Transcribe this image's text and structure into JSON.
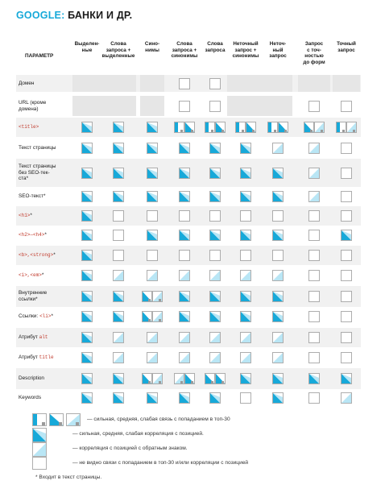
{
  "title": {
    "accent": "GOOGLE:",
    "rest": " БАНКИ И ДР."
  },
  "columns_header": "ПАРАМЕТР",
  "columns": [
    "Выделен-\nные",
    "Слова\nзапроса +\nвыделенные",
    "Сино-\nнимы",
    "Слова\nзапроса +\nсинонимы",
    "Слова\nзапроса",
    "Неточный\nзапрос +\nсинонимы",
    "Неточ-\nный\nзапрос",
    "Запрос\nс точ-\nностью\nдо форм",
    "Точный\nзапрос"
  ],
  "rows": [
    {
      "label": "Домен",
      "cells": [
        "gray",
        "gray",
        "gray",
        "empty",
        "empty",
        "gray",
        "gray",
        "gray",
        "gray"
      ]
    },
    {
      "label": "URL (кроме\nдомена)",
      "cells": [
        "gray",
        "gray",
        "gray",
        "empty",
        "empty",
        "gray",
        "gray",
        "empty",
        "empty"
      ]
    },
    {
      "label_code": "<title>",
      "cells": [
        "tri-dark",
        "tri-dark",
        "tri-dark",
        "bars-sm",
        "bars-sm",
        "bars-s2",
        "bars-s2",
        "bars-ww",
        "bars-sw"
      ]
    },
    {
      "label": "Текст страницы",
      "cells": [
        "tri-dark",
        "tri-dark",
        "tri-dark",
        "tri-dark",
        "tri-dark",
        "tri-dark",
        "tri-light",
        "tri-light",
        "empty"
      ]
    },
    {
      "label": "Текст страницы\nбез SEO-тек-\nста*",
      "cells": [
        "tri-dark",
        "tri-dark",
        "tri-dark",
        "tri-dark",
        "tri-dark",
        "tri-dark",
        "tri-dark",
        "tri-light",
        "empty"
      ]
    },
    {
      "label": "SEO-текст*",
      "cells": [
        "tri-dark",
        "tri-dark",
        "tri-dark",
        "tri-dark",
        "tri-dark",
        "tri-dark",
        "tri-dark",
        "tri-light",
        "empty"
      ]
    },
    {
      "label_code": "<h1>",
      "label_after": "*",
      "cells": [
        "tri-dark",
        "empty",
        "empty",
        "empty",
        "empty",
        "empty",
        "empty",
        "empty",
        "empty"
      ]
    },
    {
      "label_code": "<h2>—<h4>",
      "label_after": "*",
      "cells": [
        "tri-dark",
        "empty",
        "tri-dark",
        "tri-dark",
        "tri-dark",
        "tri-dark",
        "tri-dark",
        "empty",
        "tri-dark"
      ]
    },
    {
      "label_code": "<b>,<strong>",
      "label_after": "*",
      "cells": [
        "tri-dark",
        "empty",
        "empty",
        "empty",
        "empty",
        "empty",
        "empty",
        "empty",
        "empty"
      ]
    },
    {
      "label_code": "<i>,<em>",
      "label_after": "*",
      "cells": [
        "tri-dark",
        "tri-light",
        "tri-light",
        "tri-light",
        "tri-light",
        "tri-light",
        "tri-light",
        "empty",
        "empty"
      ]
    },
    {
      "label": "Внутренние\nссылки*",
      "cells": [
        "tri-dark",
        "tri-dark",
        "bars-wm",
        "tri-dark",
        "tri-dark",
        "tri-dark",
        "tri-dark",
        "empty",
        "empty"
      ]
    },
    {
      "label": "Ссылки: ",
      "label_code": "<li>",
      "label_after": "*",
      "label_prefix": true,
      "cells": [
        "tri-dark",
        "tri-dark",
        "bars-wm",
        "tri-dark",
        "tri-dark",
        "tri-dark",
        "tri-dark",
        "empty",
        "empty"
      ]
    },
    {
      "label": "Атрибут ",
      "label_code": "alt",
      "label_prefix": true,
      "cells": [
        "tri-dark",
        "tri-light",
        "tri-light",
        "tri-light",
        "tri-light",
        "tri-light",
        "tri-light",
        "empty",
        "empty"
      ]
    },
    {
      "label": "Атрибут ",
      "label_code": "title",
      "label_prefix": true,
      "cells": [
        "tri-dark",
        "tri-light",
        "tri-light",
        "tri-light",
        "tri-light",
        "tri-light",
        "tri-light",
        "empty",
        "empty"
      ]
    },
    {
      "label": "Description",
      "cells": [
        "tri-dark",
        "tri-dark",
        "bars-wm",
        "bars-ww2",
        "bars-mw",
        "tri-dark",
        "tri-dark",
        "tri-dark",
        "tri-dark"
      ]
    },
    {
      "label": "Keywords",
      "cells": [
        "tri-dark",
        "tri-dark",
        "tri-dark",
        "tri-dark",
        "tri-dark",
        "empty",
        "tri-dark",
        "empty",
        "tri-light"
      ]
    }
  ],
  "legend": [
    {
      "icon": "bars-strong-medium-weak",
      "text": "— сильная, средняя, слабая связь с попаданием в топ-30"
    },
    {
      "icon": "tri-strong-medium-weak",
      "text": "— сильная, средняя, слабая корреляция с позицией."
    },
    {
      "icon": "tri-inverse",
      "text": "— корреляция с позицией с обратным знаком."
    },
    {
      "icon": "empty-box",
      "text": "— не видно связи с попаданием в топ-30 и/или корреляции с позицией"
    }
  ],
  "footnote": "* Входит в текст страницы.",
  "colors": {
    "accent": "#17a9d9",
    "light": "#b9e6f5",
    "gray": "#e6e6e6",
    "code": "#c0392b"
  }
}
